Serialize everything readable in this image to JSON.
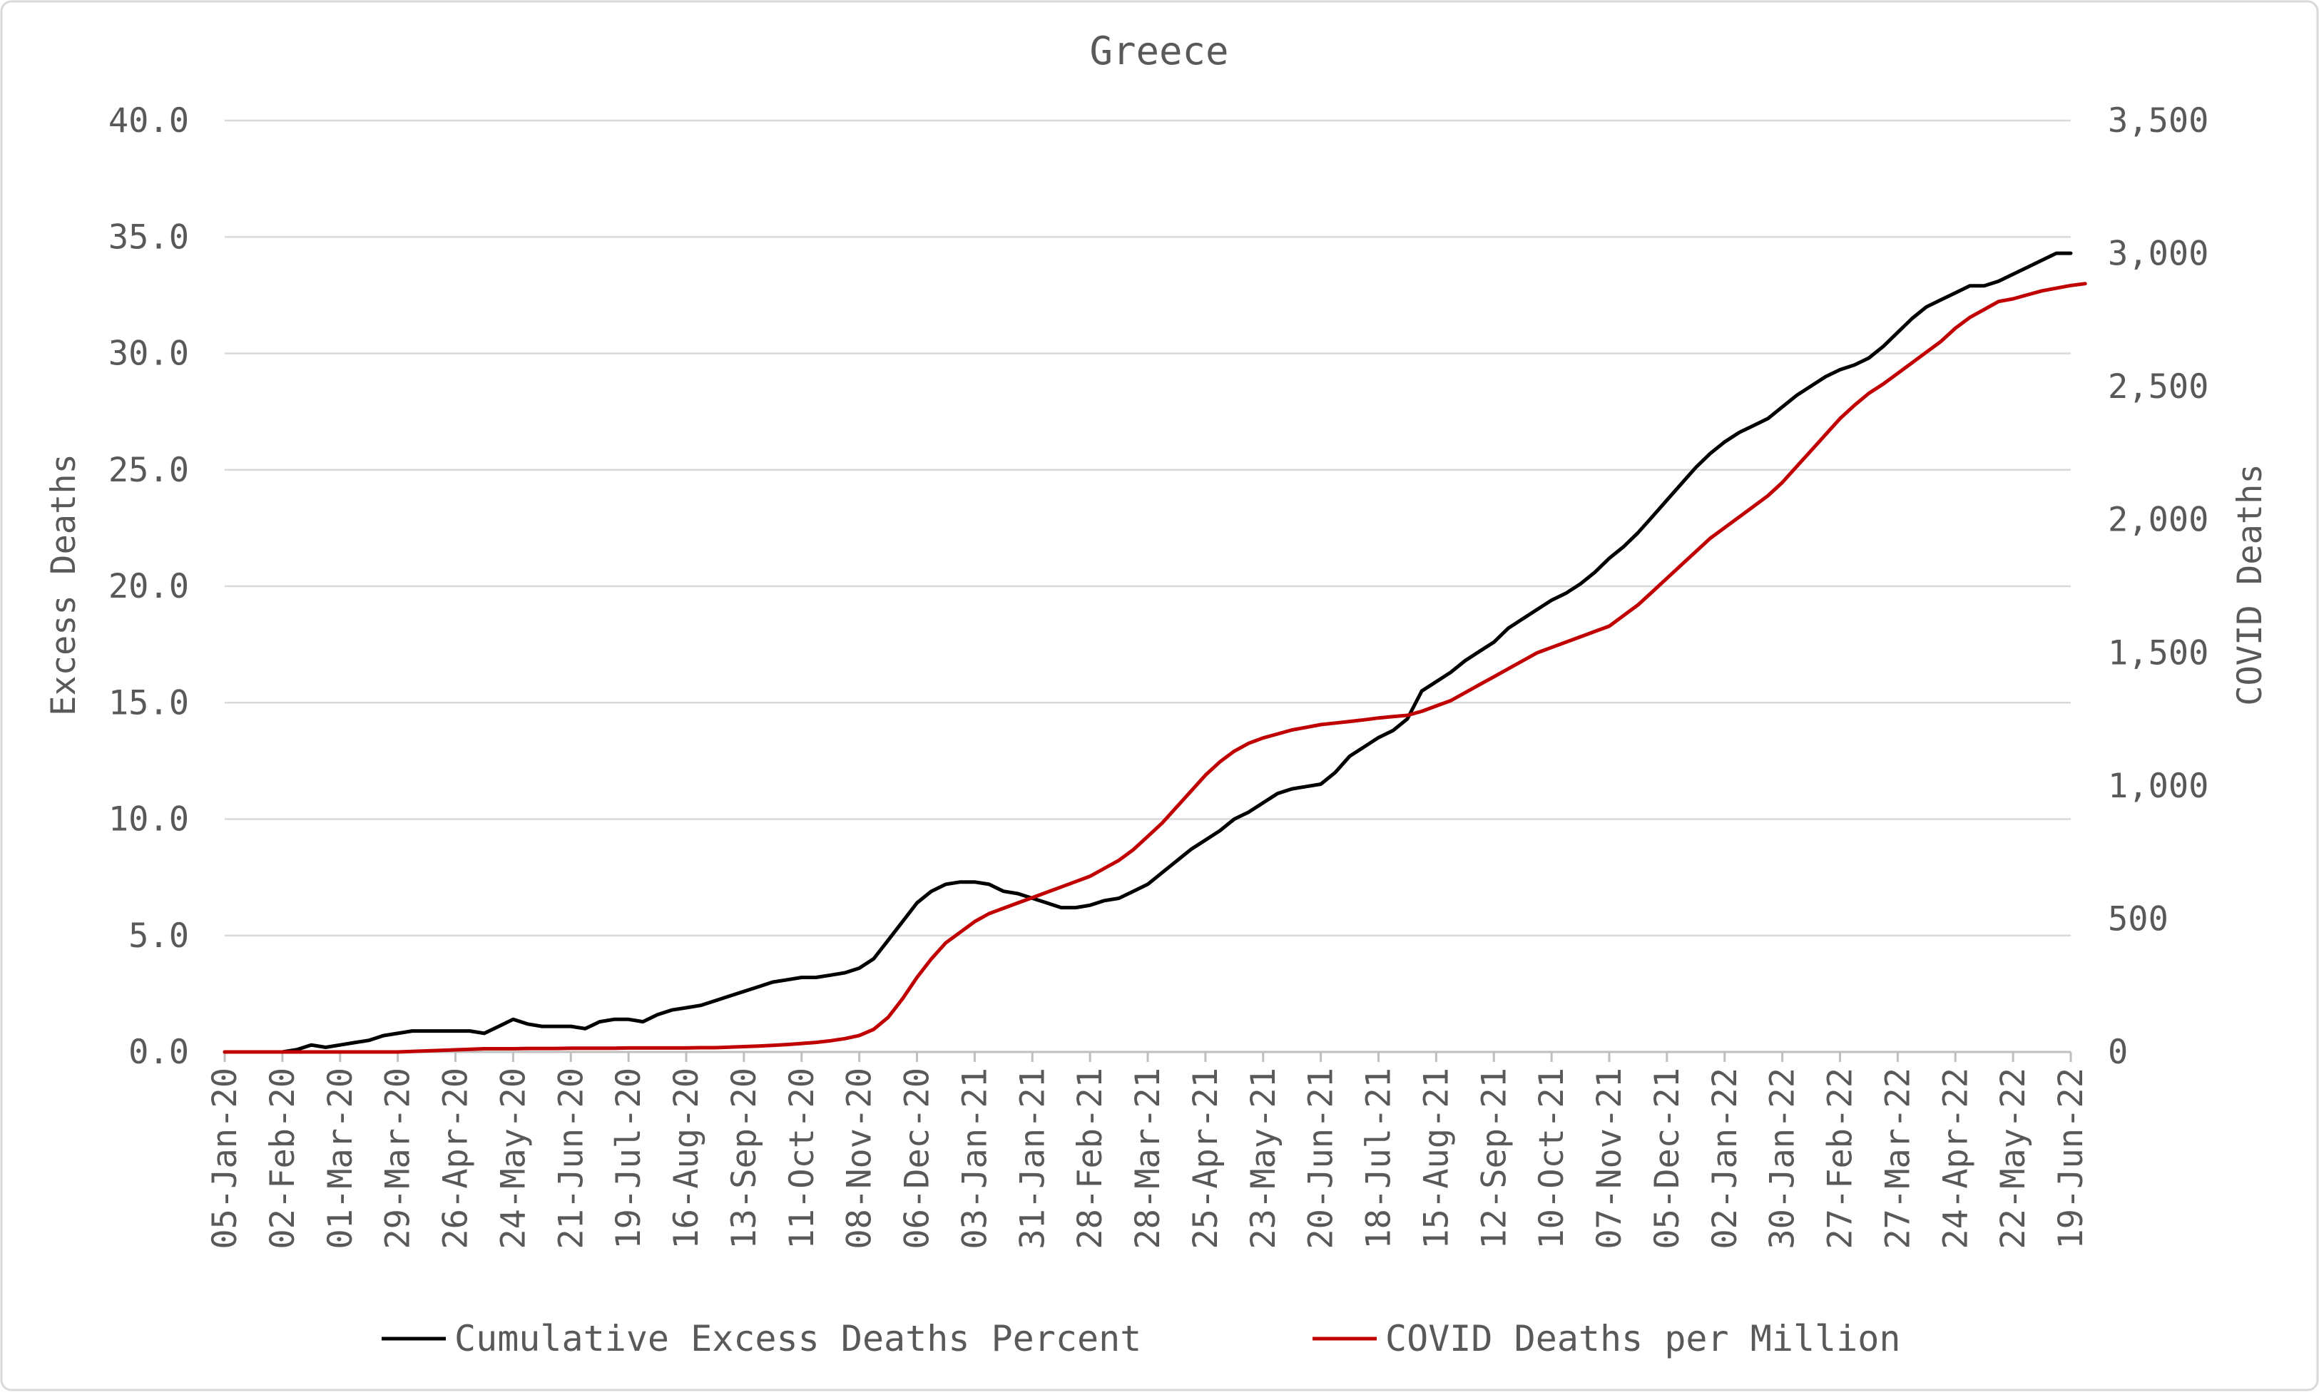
{
  "chart_data": {
    "type": "line",
    "title": "Greece",
    "ylabel": "Excess Deaths",
    "y2label": "COVID Deaths",
    "ylim": [
      0,
      40
    ],
    "y2lim": [
      0,
      3500
    ],
    "y_ticks": [
      "0.0",
      "5.0",
      "10.0",
      "15.0",
      "20.0",
      "25.0",
      "30.0",
      "35.0",
      "40.0"
    ],
    "y2_ticks": [
      "0",
      "500",
      "1,000",
      "1,500",
      "2,000",
      "2,500",
      "3,000",
      "3,500"
    ],
    "x_labels": [
      "05-Jan-20",
      "02-Feb-20",
      "01-Mar-20",
      "29-Mar-20",
      "26-Apr-20",
      "24-May-20",
      "21-Jun-20",
      "19-Jul-20",
      "16-Aug-20",
      "13-Sep-20",
      "11-Oct-20",
      "08-Nov-20",
      "06-Dec-20",
      "03-Jan-21",
      "31-Jan-21",
      "28-Feb-21",
      "28-Mar-21",
      "25-Apr-21",
      "23-May-21",
      "20-Jun-21",
      "18-Jul-21",
      "15-Aug-21",
      "12-Sep-21",
      "10-Oct-21",
      "07-Nov-21",
      "05-Dec-21",
      "02-Jan-22",
      "30-Jan-22",
      "27-Feb-22",
      "27-Mar-22",
      "24-Apr-22",
      "22-May-22",
      "19-Jun-22"
    ],
    "grid": true,
    "legend_position": "bottom",
    "series": [
      {
        "name": "Cumulative Excess Deaths Percent",
        "axis": "left",
        "color": "#000000",
        "values": [
          0.0,
          0.0,
          0.0,
          0.0,
          0.0,
          0.1,
          0.3,
          0.2,
          0.3,
          0.4,
          0.5,
          0.7,
          0.8,
          0.9,
          0.9,
          0.9,
          0.9,
          0.9,
          0.8,
          1.1,
          1.4,
          1.2,
          1.1,
          1.1,
          1.1,
          1.0,
          1.3,
          1.4,
          1.4,
          1.3,
          1.6,
          1.8,
          1.9,
          2.0,
          2.2,
          2.4,
          2.6,
          2.8,
          3.0,
          3.1,
          3.2,
          3.2,
          3.3,
          3.4,
          3.6,
          4.0,
          4.8,
          5.6,
          6.4,
          6.9,
          7.2,
          7.3,
          7.3,
          7.2,
          6.9,
          6.8,
          6.6,
          6.4,
          6.2,
          6.2,
          6.3,
          6.5,
          6.6,
          6.9,
          7.2,
          7.7,
          8.2,
          8.7,
          9.1,
          9.5,
          10.0,
          10.3,
          10.7,
          11.1,
          11.3,
          11.4,
          11.5,
          12.0,
          12.7,
          13.1,
          13.5,
          13.8,
          14.3,
          15.5,
          15.9,
          16.3,
          16.8,
          17.2,
          17.6,
          18.2,
          18.6,
          19.0,
          19.4,
          19.7,
          20.1,
          20.6,
          21.2,
          21.7,
          22.3,
          23.0,
          23.7,
          24.4,
          25.1,
          25.7,
          26.2,
          26.6,
          26.9,
          27.2,
          27.7,
          28.2,
          28.6,
          29.0,
          29.3,
          29.5,
          29.8,
          30.3,
          30.9,
          31.5,
          32.0,
          32.3,
          32.6,
          32.9,
          32.9,
          33.1,
          33.4,
          33.7,
          34.0,
          34.3,
          34.3
        ]
      },
      {
        "name": "COVID Deaths per Million",
        "axis": "right",
        "color": "#c00000",
        "values": [
          0,
          0,
          0,
          0,
          0,
          0,
          0,
          0,
          0,
          0,
          0,
          0,
          0,
          2,
          4,
          6,
          8,
          10,
          12,
          12,
          12,
          13,
          13,
          13,
          14,
          14,
          14,
          14,
          15,
          15,
          15,
          15,
          15,
          16,
          16,
          18,
          20,
          22,
          25,
          28,
          32,
          36,
          42,
          50,
          62,
          85,
          130,
          200,
          280,
          350,
          410,
          450,
          490,
          520,
          540,
          560,
          580,
          600,
          620,
          640,
          660,
          690,
          720,
          760,
          810,
          860,
          920,
          980,
          1040,
          1090,
          1130,
          1160,
          1180,
          1195,
          1210,
          1220,
          1230,
          1236,
          1242,
          1248,
          1255,
          1260,
          1265,
          1280,
          1300,
          1320,
          1350,
          1380,
          1410,
          1440,
          1470,
          1500,
          1520,
          1540,
          1560,
          1580,
          1600,
          1640,
          1680,
          1730,
          1780,
          1830,
          1880,
          1930,
          1970,
          2010,
          2050,
          2090,
          2140,
          2200,
          2260,
          2320,
          2380,
          2430,
          2475,
          2510,
          2550,
          2590,
          2630,
          2670,
          2720,
          2760,
          2790,
          2820,
          2830,
          2845,
          2860,
          2870,
          2880,
          2887
        ]
      }
    ]
  }
}
